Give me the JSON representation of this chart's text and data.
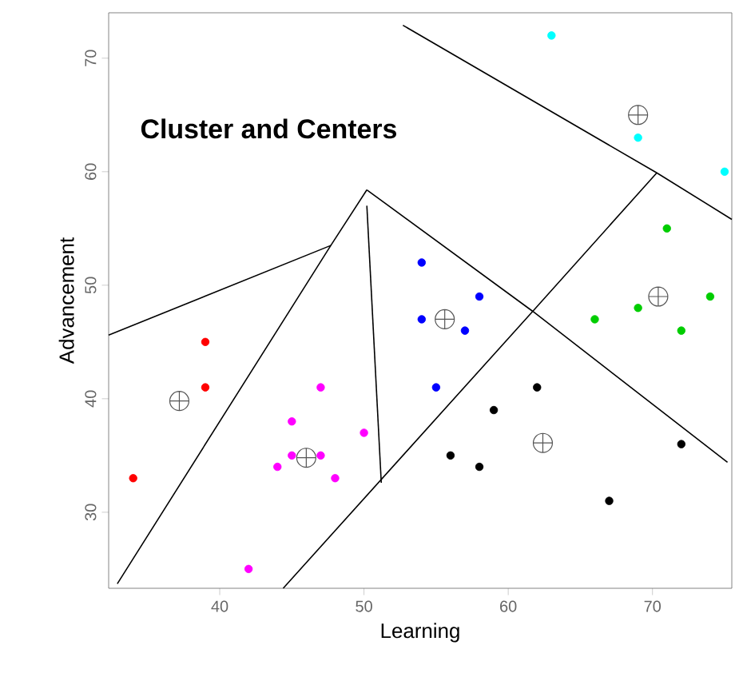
{
  "chart_data": {
    "type": "scatter",
    "title": "Cluster and Centers",
    "xlabel": "Learning",
    "ylabel": "Advancement",
    "xlim": [
      32.3,
      75.5
    ],
    "ylim": [
      23.3,
      74
    ],
    "xticks": [
      40,
      50,
      60,
      70
    ],
    "yticks": [
      30,
      40,
      50,
      60,
      70
    ],
    "grid": false,
    "series": [
      {
        "marker": "circle",
        "color": "#ff0000",
        "x": [
          39,
          39,
          34
        ],
        "values": [
          45,
          41,
          33
        ]
      },
      {
        "marker": "circle",
        "color": "#ff00ff",
        "x": [
          47,
          45,
          50,
          44,
          45,
          47,
          48,
          42
        ],
        "values": [
          41,
          38,
          37,
          34,
          35,
          35,
          33,
          25
        ]
      },
      {
        "marker": "circle",
        "color": "#0000ff",
        "x": [
          54,
          58,
          54,
          57,
          55
        ],
        "values": [
          52,
          49,
          47,
          46,
          41
        ]
      },
      {
        "marker": "circle",
        "color": "#000000",
        "x": [
          62,
          59,
          56,
          58,
          67,
          72
        ],
        "values": [
          41,
          39,
          35,
          34,
          31,
          36
        ]
      },
      {
        "marker": "circle",
        "color": "#00cd00",
        "x": [
          66,
          69,
          72,
          74,
          71
        ],
        "values": [
          47,
          48,
          46,
          49,
          55
        ]
      },
      {
        "marker": "circle",
        "color": "#00ffff",
        "x": [
          63,
          69,
          75
        ],
        "values": [
          72,
          63,
          60
        ]
      },
      {
        "marker": "cross",
        "color": "#555555",
        "x": [
          37.2,
          46,
          55.6,
          62.4,
          70.4,
          69
        ],
        "values": [
          39.8,
          34.8,
          47,
          36.1,
          49,
          65
        ]
      },
      {
        "type": "line",
        "marker": "none",
        "color": "#000000",
        "x": [
          52.7,
          70.3,
          75.5
        ],
        "values": [
          72.9,
          59.9,
          55.8
        ]
      },
      {
        "type": "line",
        "marker": "none",
        "color": "#000000",
        "x": [
          70.3,
          61.7,
          44.4
        ],
        "values": [
          59.9,
          47.7,
          23.3
        ]
      },
      {
        "type": "line",
        "marker": "none",
        "color": "#000000",
        "x": [
          50.2,
          61.7,
          75.2
        ],
        "values": [
          58.4,
          47.7,
          34.4
        ]
      },
      {
        "type": "line",
        "marker": "none",
        "color": "#000000",
        "x": [
          50.2,
          47.7,
          32.9
        ],
        "values": [
          58.4,
          53.5,
          23.7
        ]
      },
      {
        "type": "line",
        "marker": "none",
        "color": "#000000",
        "x": [
          47.7,
          32.3
        ],
        "values": [
          53.5,
          45.6
        ]
      },
      {
        "type": "line",
        "marker": "none",
        "color": "#000000",
        "x": [
          50.2,
          51.2
        ],
        "values": [
          57.0,
          32.6
        ]
      }
    ]
  }
}
